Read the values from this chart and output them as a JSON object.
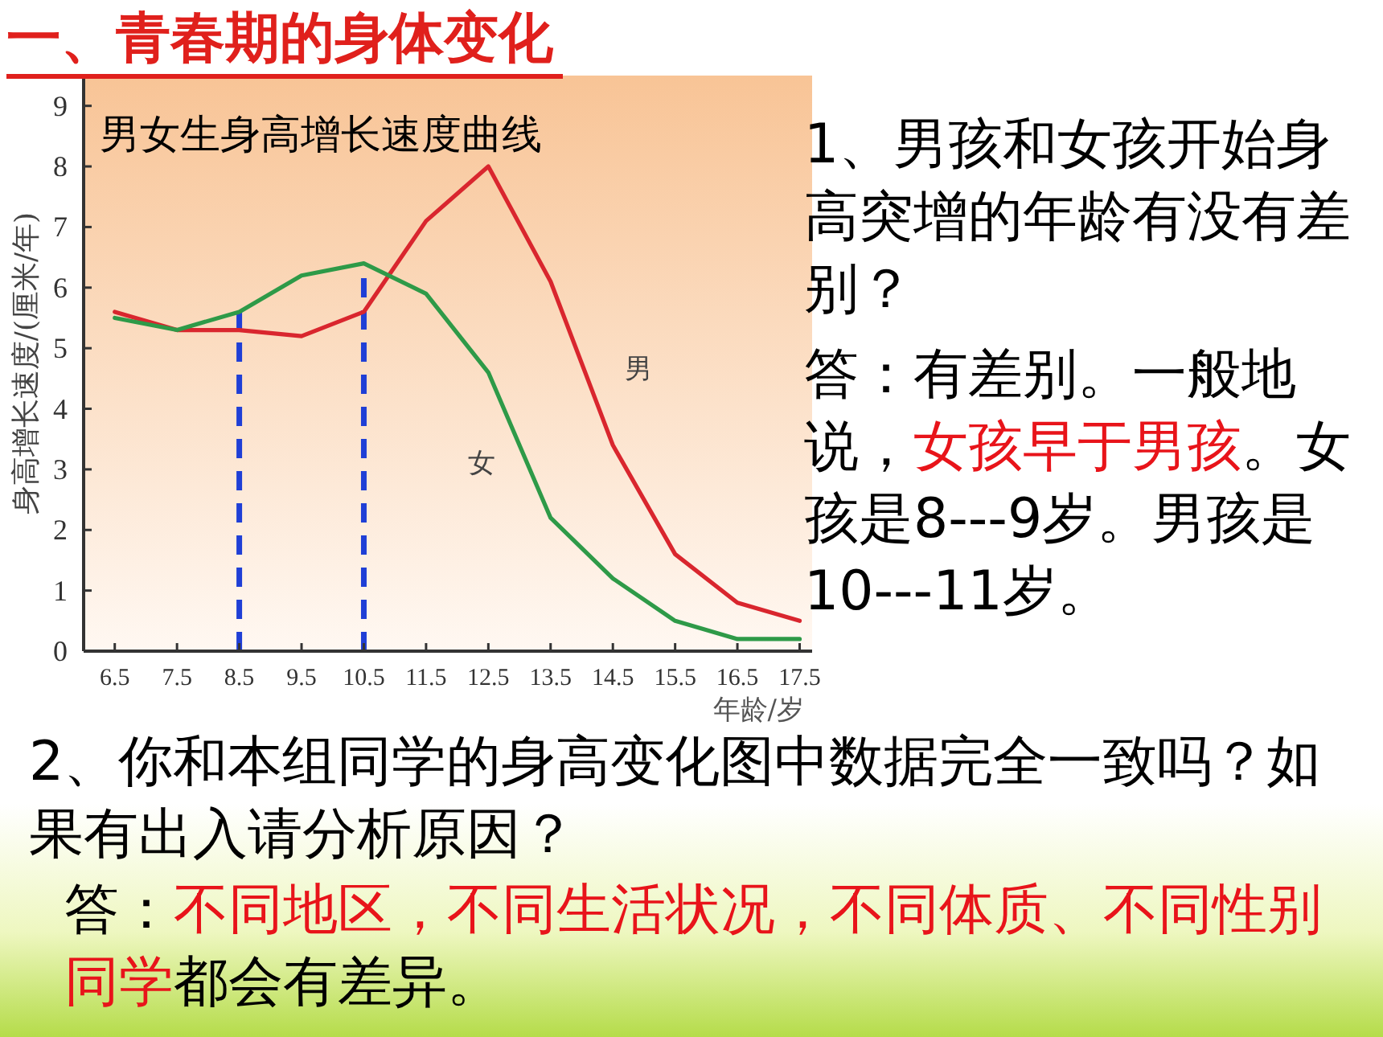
{
  "chart_data": {
    "type": "line",
    "title": "一、青春期的身体变化",
    "subtitle": "男女生身高增长速度曲线",
    "xlabel": "年龄/岁",
    "ylabel": "身高增长速度/(厘米/年)",
    "x": [
      6.5,
      7.5,
      8.5,
      9.5,
      10.5,
      11.5,
      12.5,
      13.5,
      14.5,
      15.5,
      16.5,
      17.5
    ],
    "series": [
      {
        "name": "男",
        "color": "#d9262e",
        "values": [
          5.6,
          5.3,
          5.3,
          5.2,
          5.6,
          7.1,
          8.0,
          6.1,
          3.4,
          1.6,
          0.8,
          0.5
        ]
      },
      {
        "name": "女",
        "color": "#2e9a48",
        "values": [
          5.5,
          5.3,
          5.6,
          6.2,
          6.4,
          5.9,
          4.6,
          2.2,
          1.2,
          0.5,
          0.2,
          0.2
        ]
      }
    ],
    "xlim": [
      6,
      17.7
    ],
    "ylim": [
      0,
      9.5
    ],
    "xticks": [
      6.5,
      7.5,
      8.5,
      9.5,
      10.5,
      11.5,
      12.5,
      13.5,
      14.5,
      15.5,
      16.5,
      17.5
    ],
    "yticks": [
      0,
      1,
      2,
      3,
      4,
      5,
      6,
      7,
      8,
      9
    ],
    "ref_lines": [
      {
        "axis": "x",
        "value": 8.5,
        "color": "#1f3fd6",
        "line_style": "dashed"
      },
      {
        "axis": "x",
        "value": 10.5,
        "color": "#1f3fd6",
        "line_style": "dashed"
      }
    ],
    "grid": false,
    "legend": false,
    "marker": "none",
    "line_style": "solid",
    "annotations": [
      "1、男孩和女孩开始身高突增的年龄有没有差别？",
      "答：有差别。一般地说，",
      "女孩早于男孩",
      "。女孩是8---9岁。男孩是10---11岁。",
      "2、你和本组同学的身高变化图中数据完全一致吗？如果有出入请分析原因？",
      "答：",
      "不同地区，不同生活状况，不同体质、不同性别同学",
      "都会有差异。"
    ]
  }
}
